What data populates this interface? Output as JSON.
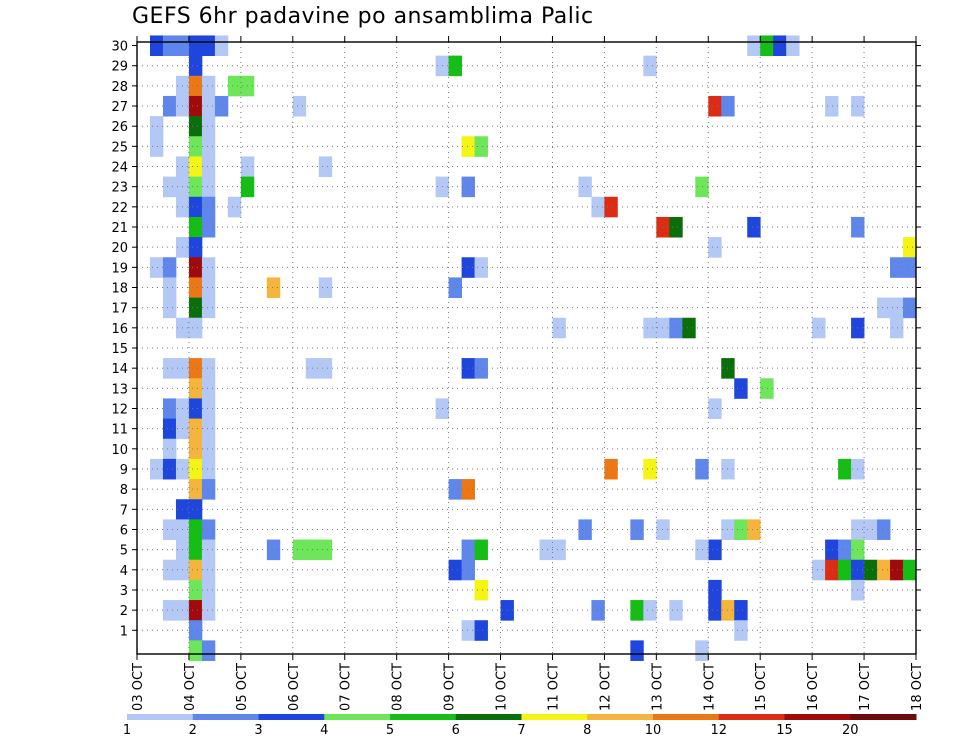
{
  "chart_data": {
    "type": "heatmap",
    "title": "GEFS 6hr padavine po ansamblima Palic",
    "xlabel": "",
    "ylabel": "",
    "x_ticks": [
      "03 OCT",
      "04 OCT",
      "05 OCT",
      "06 OCT",
      "07 OCT",
      "08 OCT",
      "09 OCT",
      "10 OCT",
      "11 OCT",
      "12 OCT",
      "13 OCT",
      "14 OCT",
      "15 OCT",
      "16 OCT",
      "17 OCT",
      "18 OCT"
    ],
    "x_range_days": [
      0,
      15
    ],
    "x_step_hours": 6,
    "y_ticks": [
      1,
      2,
      3,
      4,
      5,
      6,
      7,
      8,
      9,
      10,
      11,
      12,
      13,
      14,
      15,
      16,
      17,
      18,
      19,
      20,
      21,
      22,
      23,
      24,
      25,
      26,
      27,
      28,
      29,
      30
    ],
    "y_range": [
      0,
      30
    ],
    "grid": true,
    "colorbar": {
      "labels": [
        "1",
        "2",
        "3",
        "4",
        "5",
        "6",
        "7",
        "8",
        "10",
        "12",
        "15",
        "20"
      ],
      "colors": [
        "#b4c8f5",
        "#5f87eb",
        "#1e46dc",
        "#6ee65a",
        "#14be14",
        "#0a6e0a",
        "#f5f514",
        "#f5b43c",
        "#eb7814",
        "#dc2d14",
        "#a00a0a",
        "#6e0a0a"
      ]
    },
    "cells": [
      [
        0.25,
        30,
        2
      ],
      [
        0.5,
        30,
        1
      ],
      [
        0.75,
        30,
        1
      ],
      [
        1.0,
        30,
        2
      ],
      [
        1.25,
        30,
        2
      ],
      [
        1.5,
        30,
        0
      ],
      [
        11.75,
        30,
        0
      ],
      [
        12.0,
        30,
        4
      ],
      [
        12.25,
        30,
        2
      ],
      [
        12.5,
        30,
        0
      ],
      [
        1.0,
        29,
        2
      ],
      [
        5.75,
        29,
        0
      ],
      [
        6.0,
        29,
        4
      ],
      [
        9.75,
        29,
        0
      ],
      [
        0.75,
        28,
        0
      ],
      [
        1.0,
        28,
        8
      ],
      [
        1.25,
        28,
        0
      ],
      [
        1.75,
        28,
        3
      ],
      [
        2.0,
        28,
        3
      ],
      [
        0.5,
        27,
        1
      ],
      [
        0.75,
        27,
        0
      ],
      [
        1.0,
        27,
        10
      ],
      [
        1.25,
        27,
        0
      ],
      [
        1.5,
        27,
        1
      ],
      [
        3.0,
        27,
        0
      ],
      [
        11.0,
        27,
        9
      ],
      [
        11.25,
        27,
        1
      ],
      [
        13.25,
        27,
        0
      ],
      [
        13.75,
        27,
        0
      ],
      [
        0.25,
        26,
        0
      ],
      [
        1.0,
        26,
        5
      ],
      [
        1.25,
        26,
        0
      ],
      [
        0.25,
        25,
        0
      ],
      [
        1.0,
        25,
        3
      ],
      [
        1.25,
        25,
        0
      ],
      [
        6.25,
        25,
        6
      ],
      [
        6.5,
        25,
        3
      ],
      [
        0.75,
        24,
        0
      ],
      [
        1.0,
        24,
        6
      ],
      [
        1.25,
        24,
        0
      ],
      [
        2.0,
        24,
        0
      ],
      [
        3.5,
        24,
        0
      ],
      [
        0.5,
        23,
        0
      ],
      [
        0.75,
        23,
        0
      ],
      [
        1.0,
        23,
        3
      ],
      [
        1.25,
        23,
        0
      ],
      [
        2.0,
        23,
        4
      ],
      [
        5.75,
        23,
        0
      ],
      [
        6.25,
        23,
        1
      ],
      [
        8.5,
        23,
        0
      ],
      [
        10.75,
        23,
        3
      ],
      [
        0.75,
        22,
        0
      ],
      [
        1.0,
        22,
        2
      ],
      [
        1.25,
        22,
        1
      ],
      [
        1.75,
        22,
        0
      ],
      [
        8.75,
        22,
        0
      ],
      [
        9.0,
        22,
        9
      ],
      [
        1.0,
        21,
        4
      ],
      [
        1.25,
        21,
        1
      ],
      [
        10.0,
        21,
        9
      ],
      [
        10.25,
        21,
        5
      ],
      [
        11.75,
        21,
        2
      ],
      [
        13.75,
        21,
        1
      ],
      [
        0.75,
        20,
        0
      ],
      [
        1.0,
        20,
        2
      ],
      [
        11.0,
        20,
        0
      ],
      [
        14.75,
        20,
        6
      ],
      [
        0.25,
        19,
        0
      ],
      [
        0.5,
        19,
        1
      ],
      [
        1.0,
        19,
        10
      ],
      [
        1.25,
        19,
        0
      ],
      [
        6.25,
        19,
        2
      ],
      [
        6.5,
        19,
        0
      ],
      [
        14.5,
        19,
        1
      ],
      [
        14.75,
        19,
        1
      ],
      [
        0.5,
        18,
        0
      ],
      [
        1.0,
        18,
        8
      ],
      [
        1.25,
        18,
        0
      ],
      [
        2.5,
        18,
        7
      ],
      [
        3.5,
        18,
        0
      ],
      [
        6.0,
        18,
        1
      ],
      [
        0.5,
        17,
        0
      ],
      [
        1.0,
        17,
        5
      ],
      [
        1.25,
        17,
        0
      ],
      [
        14.25,
        17,
        0
      ],
      [
        14.5,
        17,
        0
      ],
      [
        14.75,
        17,
        1
      ],
      [
        0.75,
        16,
        0
      ],
      [
        1.0,
        16,
        0
      ],
      [
        8.0,
        16,
        0
      ],
      [
        9.75,
        16,
        0
      ],
      [
        10.0,
        16,
        0
      ],
      [
        10.25,
        16,
        1
      ],
      [
        10.5,
        16,
        5
      ],
      [
        13.0,
        16,
        0
      ],
      [
        13.75,
        16,
        2
      ],
      [
        14.5,
        16,
        0
      ],
      [
        0.5,
        14,
        0
      ],
      [
        0.75,
        14,
        0
      ],
      [
        1.0,
        14,
        8
      ],
      [
        1.25,
        14,
        0
      ],
      [
        3.25,
        14,
        0
      ],
      [
        3.5,
        14,
        0
      ],
      [
        6.25,
        14,
        2
      ],
      [
        6.5,
        14,
        1
      ],
      [
        11.25,
        14,
        5
      ],
      [
        1.0,
        13,
        7
      ],
      [
        1.25,
        13,
        0
      ],
      [
        11.5,
        13,
        2
      ],
      [
        12.0,
        13,
        3
      ],
      [
        0.5,
        12,
        1
      ],
      [
        0.75,
        12,
        0
      ],
      [
        1.0,
        12,
        2
      ],
      [
        1.25,
        12,
        0
      ],
      [
        5.75,
        12,
        0
      ],
      [
        11.0,
        12,
        0
      ],
      [
        0.5,
        11,
        2
      ],
      [
        0.75,
        11,
        0
      ],
      [
        1.0,
        11,
        7
      ],
      [
        1.25,
        11,
        0
      ],
      [
        0.5,
        10,
        0
      ],
      [
        1.0,
        10,
        7
      ],
      [
        1.25,
        10,
        0
      ],
      [
        0.25,
        9,
        0
      ],
      [
        0.5,
        9,
        2
      ],
      [
        0.75,
        9,
        0
      ],
      [
        1.0,
        9,
        6
      ],
      [
        1.25,
        9,
        0
      ],
      [
        9.0,
        9,
        8
      ],
      [
        9.75,
        9,
        6
      ],
      [
        10.75,
        9,
        1
      ],
      [
        11.25,
        9,
        0
      ],
      [
        13.5,
        9,
        4
      ],
      [
        13.75,
        9,
        0
      ],
      [
        1.0,
        8,
        7
      ],
      [
        1.25,
        8,
        1
      ],
      [
        6.0,
        8,
        1
      ],
      [
        6.25,
        8,
        8
      ],
      [
        0.75,
        7,
        2
      ],
      [
        1.0,
        7,
        2
      ],
      [
        0.5,
        6,
        0
      ],
      [
        0.75,
        6,
        0
      ],
      [
        1.0,
        6,
        4
      ],
      [
        1.25,
        6,
        1
      ],
      [
        8.5,
        6,
        1
      ],
      [
        9.5,
        6,
        1
      ],
      [
        10.0,
        6,
        0
      ],
      [
        11.25,
        6,
        0
      ],
      [
        11.5,
        6,
        3
      ],
      [
        11.75,
        6,
        7
      ],
      [
        13.75,
        6,
        0
      ],
      [
        14.0,
        6,
        0
      ],
      [
        14.25,
        6,
        1
      ],
      [
        0.75,
        5,
        0
      ],
      [
        1.0,
        5,
        4
      ],
      [
        1.25,
        5,
        0
      ],
      [
        2.5,
        5,
        1
      ],
      [
        3.0,
        5,
        3
      ],
      [
        3.25,
        5,
        3
      ],
      [
        3.5,
        5,
        3
      ],
      [
        6.25,
        5,
        1
      ],
      [
        6.5,
        5,
        4
      ],
      [
        7.75,
        5,
        0
      ],
      [
        8.0,
        5,
        0
      ],
      [
        11.0,
        5,
        2
      ],
      [
        10.75,
        5,
        0
      ],
      [
        13.25,
        5,
        2
      ],
      [
        13.5,
        5,
        1
      ],
      [
        13.75,
        5,
        3
      ],
      [
        0.5,
        4,
        0
      ],
      [
        0.75,
        4,
        0
      ],
      [
        1.0,
        4,
        7
      ],
      [
        1.25,
        4,
        0
      ],
      [
        6.0,
        4,
        2
      ],
      [
        6.25,
        4,
        1
      ],
      [
        13.0,
        4,
        0
      ],
      [
        13.25,
        4,
        9
      ],
      [
        13.5,
        4,
        4
      ],
      [
        13.75,
        4,
        2
      ],
      [
        14.0,
        4,
        5
      ],
      [
        14.25,
        4,
        7
      ],
      [
        14.5,
        4,
        10
      ],
      [
        14.75,
        4,
        4
      ],
      [
        1.0,
        3,
        3
      ],
      [
        1.25,
        3,
        0
      ],
      [
        6.5,
        3,
        6
      ],
      [
        11.0,
        3,
        2
      ],
      [
        13.75,
        3,
        0
      ],
      [
        0.5,
        2,
        0
      ],
      [
        0.75,
        2,
        0
      ],
      [
        1.0,
        2,
        10
      ],
      [
        1.25,
        2,
        0
      ],
      [
        7.0,
        2,
        2
      ],
      [
        8.75,
        2,
        1
      ],
      [
        9.5,
        2,
        4
      ],
      [
        9.75,
        2,
        0
      ],
      [
        10.25,
        2,
        0
      ],
      [
        11.0,
        2,
        2
      ],
      [
        11.25,
        2,
        7
      ],
      [
        11.5,
        2,
        2
      ],
      [
        1.0,
        1,
        1
      ],
      [
        6.25,
        1,
        0
      ],
      [
        6.5,
        1,
        2
      ],
      [
        11.5,
        1,
        0
      ],
      [
        1.0,
        0,
        3
      ],
      [
        1.25,
        0,
        1
      ],
      [
        9.5,
        0,
        2
      ],
      [
        10.75,
        0,
        0
      ]
    ]
  }
}
